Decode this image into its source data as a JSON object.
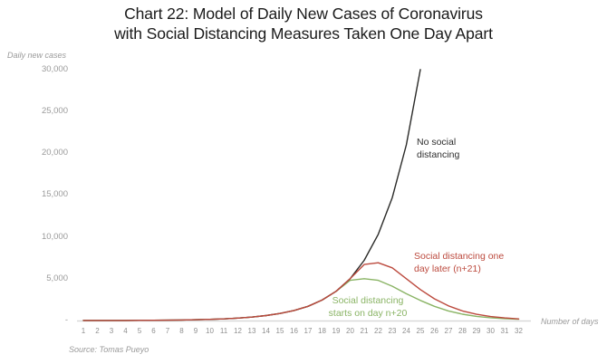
{
  "header": {
    "title_line1": "Chart 22: Model of Daily New Cases of Coronavirus",
    "title_line2": "with Social Distancing Measures Taken One Day Apart"
  },
  "axes": {
    "y_label": "Daily new cases",
    "x_label": "Number of days"
  },
  "source": "Source: Tomas Pueyo",
  "annotations": {
    "no_distancing": {
      "line1": "No social",
      "line2": "distancing",
      "color": "#2e2e2e"
    },
    "one_day_later": {
      "line1": "Social distancing one",
      "line2": "day later (n+21)",
      "color": "#bc4a3e"
    },
    "starts_day20": {
      "line1": "Social distancing",
      "line2": "starts on day n+20",
      "color": "#8ab465"
    }
  },
  "chart_data": {
    "type": "line",
    "title": "Chart 22: Model of Daily New Cases of Coronavirus with Social Distancing Measures Taken One Day Apart",
    "xlabel": "Number of days",
    "ylabel": "Daily new cases",
    "x": [
      1,
      2,
      3,
      4,
      5,
      6,
      7,
      8,
      9,
      10,
      11,
      12,
      13,
      14,
      15,
      16,
      17,
      18,
      19,
      20,
      21,
      22,
      23,
      24,
      25,
      26,
      27,
      28,
      29,
      30,
      31,
      32
    ],
    "ylim": [
      0,
      30000
    ],
    "grid": false,
    "legend_position": "inline-annotations",
    "axis_line_color": "#d9d9d9",
    "y_ticks": [
      {
        "label": "30,000",
        "value": 30000
      },
      {
        "label": "25,000",
        "value": 25000
      },
      {
        "label": "20,000",
        "value": 20000
      },
      {
        "label": "15,000",
        "value": 15000
      },
      {
        "label": "10,000",
        "value": 10000
      },
      {
        "label": "5,000",
        "value": 5000
      },
      {
        "label": "-",
        "value": 0
      }
    ],
    "series": [
      {
        "name": "Social distancing starts on day n+20",
        "color": "#8ab465",
        "values": [
          6,
          8,
          12,
          16,
          23,
          34,
          48,
          69,
          98,
          140,
          200,
          290,
          410,
          590,
          840,
          1200,
          1700,
          2450,
          3500,
          4800,
          5000,
          4800,
          4100,
          3200,
          2400,
          1700,
          1150,
          760,
          500,
          340,
          230,
          160
        ]
      },
      {
        "name": "No social distancing",
        "color": "#2a2a28",
        "values": [
          6,
          8,
          12,
          16,
          23,
          34,
          48,
          69,
          98,
          140,
          200,
          290,
          410,
          590,
          840,
          1200,
          1700,
          2450,
          3500,
          5000,
          7200,
          10300,
          14700,
          21000,
          30000
        ]
      },
      {
        "name": "Social distancing one day later (n+21)",
        "color": "#bc4a3e",
        "values": [
          6,
          8,
          12,
          16,
          23,
          34,
          48,
          69,
          98,
          140,
          200,
          290,
          410,
          590,
          840,
          1200,
          1700,
          2450,
          3500,
          5000,
          6700,
          6900,
          6300,
          5000,
          3700,
          2600,
          1750,
          1150,
          750,
          480,
          310,
          200
        ]
      }
    ]
  }
}
